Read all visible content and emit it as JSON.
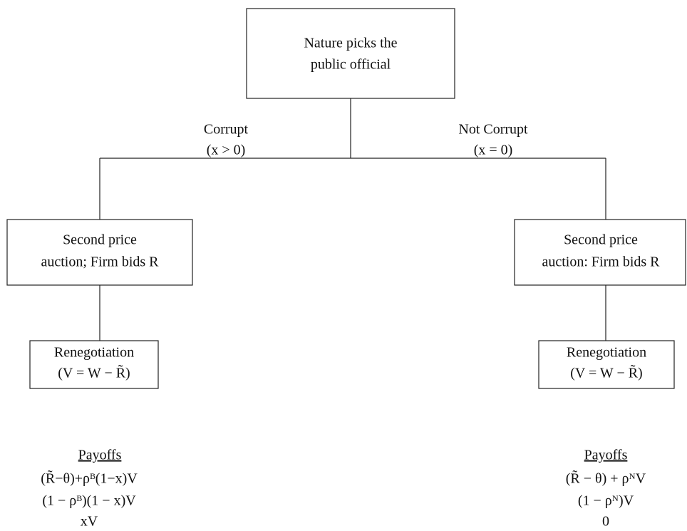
{
  "nodes": [
    {
      "lines": [
        "Nature picks the",
        "public official"
      ]
    },
    {
      "lines": [
        "Second price",
        "auction; Firm bids R"
      ]
    },
    {
      "lines": [
        "Second price",
        "auction: Firm bids R"
      ]
    },
    {
      "lines": [
        "Renegotiation",
        "(V = W − R̃)"
      ]
    },
    {
      "lines": [
        "Renegotiation",
        "(V = W − R̃)"
      ]
    }
  ],
  "edges": [
    {
      "lines": [
        "Corrupt",
        "(x > 0)"
      ]
    },
    {
      "lines": [
        "Not Corrupt",
        "(x = 0)"
      ]
    }
  ],
  "payoffs": [
    {
      "title": "Payoffs",
      "lines": [
        "(R̃−θ)+ρᴮ(1−x)V",
        "(1 − ρᴮ)(1 − x)V",
        "xV"
      ]
    },
    {
      "title": "Payoffs",
      "lines": [
        "(R̃ − θ) + ρᴺV",
        "(1 − ρᴺ)V",
        "0"
      ]
    }
  ]
}
